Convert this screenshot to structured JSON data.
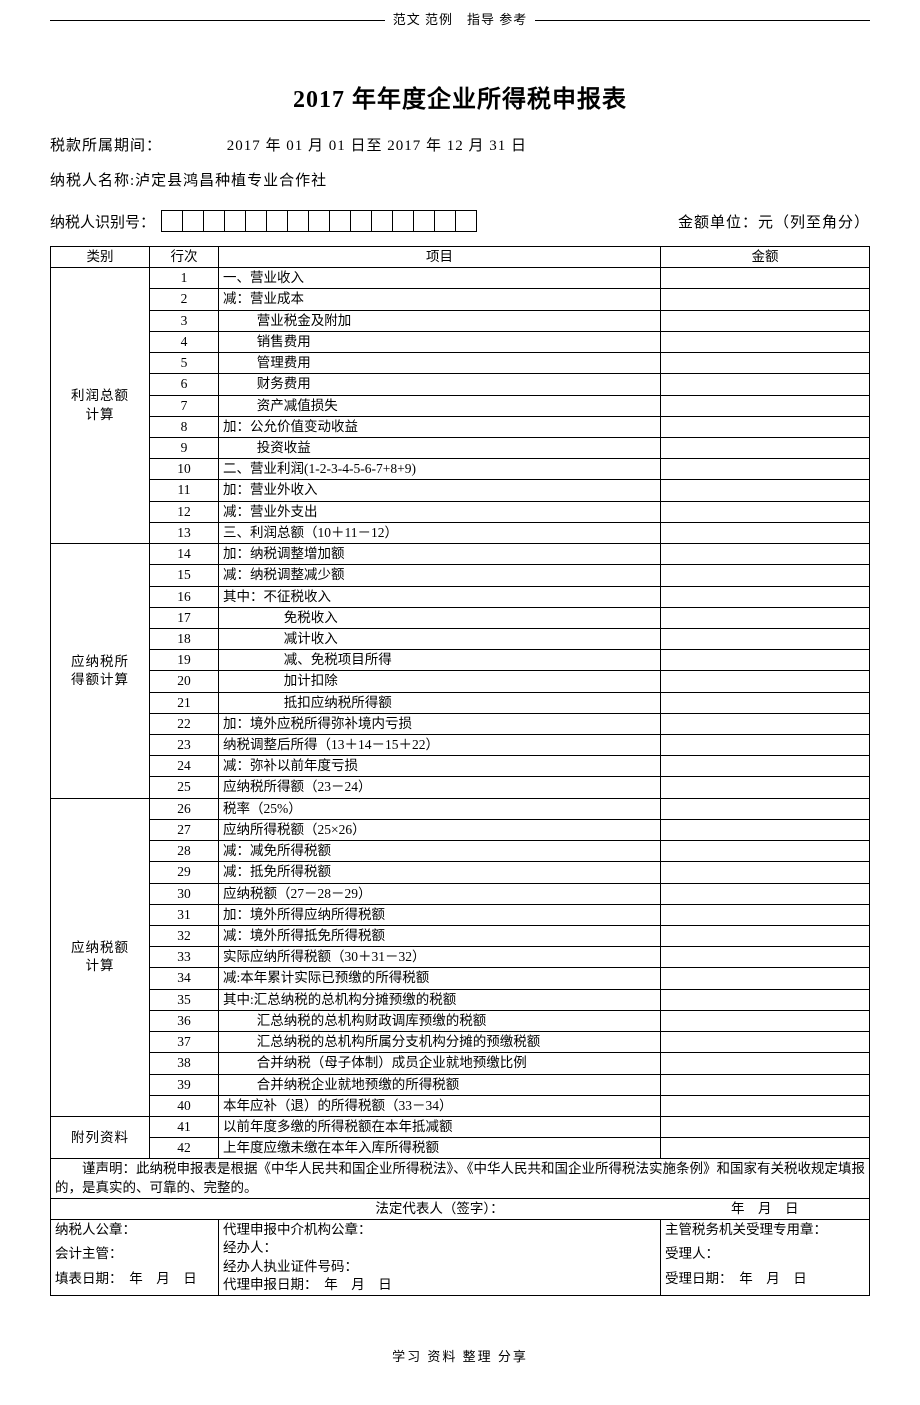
{
  "header_note": "范文 范例　指导 参考",
  "title": "2017 年年度企业所得税申报表",
  "period_label": "税款所属期间：",
  "period_value": "2017 年 01 月 01 日至 2017 年 12 月 31 日",
  "taxpayer_name_label": "纳税人名称:",
  "taxpayer_name_value": "泸定县鸿昌种植专业合作社",
  "taxpayer_id_label": "纳税人识别号：",
  "taxpayer_id_box_count": 15,
  "amount_unit": "金额单位：元（列至角分）",
  "columns": {
    "category": "类别",
    "rownum": "行次",
    "item": "项目",
    "amount": "金额"
  },
  "sections": [
    {
      "category": "利润总额\n计算",
      "rows": [
        {
          "n": "1",
          "item": "一、营业收入",
          "indent": 0
        },
        {
          "n": "2",
          "item": "减：营业成本",
          "indent": 0
        },
        {
          "n": "3",
          "item": "营业税金及附加",
          "indent": 1
        },
        {
          "n": "4",
          "item": "销售费用",
          "indent": 1
        },
        {
          "n": "5",
          "item": "管理费用",
          "indent": 1
        },
        {
          "n": "6",
          "item": "财务费用",
          "indent": 1
        },
        {
          "n": "7",
          "item": "资产减值损失",
          "indent": 1
        },
        {
          "n": "8",
          "item": "加：公允价值变动收益",
          "indent": 0
        },
        {
          "n": "9",
          "item": "投资收益",
          "indent": 1
        },
        {
          "n": "10",
          "item": "二、营业利润(1-2-3-4-5-6-7+8+9)",
          "indent": 0
        },
        {
          "n": "11",
          "item": "加：营业外收入",
          "indent": 0
        },
        {
          "n": "12",
          "item": "减：营业外支出",
          "indent": 0
        },
        {
          "n": "13",
          "item": "三、利润总额（10＋11－12）",
          "indent": 0
        }
      ]
    },
    {
      "category": "应纳税所\n得额计算",
      "rows": [
        {
          "n": "14",
          "item": "加：纳税调整增加额",
          "indent": 0
        },
        {
          "n": "15",
          "item": "减：纳税调整减少额",
          "indent": 0
        },
        {
          "n": "16",
          "item": "其中：不征税收入",
          "indent": 0
        },
        {
          "n": "17",
          "item": "免税收入",
          "indent": 2
        },
        {
          "n": "18",
          "item": "减计收入",
          "indent": 2
        },
        {
          "n": "19",
          "item": "减、免税项目所得",
          "indent": 2
        },
        {
          "n": "20",
          "item": "加计扣除",
          "indent": 2
        },
        {
          "n": "21",
          "item": "抵扣应纳税所得额",
          "indent": 2
        },
        {
          "n": "22",
          "item": "加：境外应税所得弥补境内亏损",
          "indent": 0
        },
        {
          "n": "23",
          "item": "纳税调整后所得（13＋14－15＋22）",
          "indent": 0
        },
        {
          "n": "24",
          "item": "减：弥补以前年度亏损",
          "indent": 0
        },
        {
          "n": "25",
          "item": "应纳税所得额（23－24）",
          "indent": 0
        }
      ]
    },
    {
      "category": "应纳税额\n计算",
      "rows": [
        {
          "n": "26",
          "item": "税率（25%）",
          "indent": 0
        },
        {
          "n": "27",
          "item": "应纳所得税额（25×26）",
          "indent": 0
        },
        {
          "n": "28",
          "item": "减：减免所得税额",
          "indent": 0
        },
        {
          "n": "29",
          "item": "减：抵免所得税额",
          "indent": 0
        },
        {
          "n": "30",
          "item": "应纳税额（27－28－29）",
          "indent": 0
        },
        {
          "n": "31",
          "item": "加：境外所得应纳所得税额",
          "indent": 0
        },
        {
          "n": "32",
          "item": "减：境外所得抵免所得税额",
          "indent": 0
        },
        {
          "n": "33",
          "item": "实际应纳所得税额（30＋31－32）",
          "indent": 0
        },
        {
          "n": "34",
          "item": "减:本年累计实际已预缴的所得税额",
          "indent": 0
        },
        {
          "n": "35",
          "item": "其中:汇总纳税的总机构分摊预缴的税额",
          "indent": 0
        },
        {
          "n": "36",
          "item": "汇总纳税的总机构财政调库预缴的税额",
          "indent": 1
        },
        {
          "n": "37",
          "item": "汇总纳税的总机构所属分支机构分摊的预缴税额",
          "indent": 1
        },
        {
          "n": "38",
          "item": "合并纳税（母子体制）成员企业就地预缴比例",
          "indent": 1
        },
        {
          "n": "39",
          "item": "合并纳税企业就地预缴的所得税额",
          "indent": 1
        },
        {
          "n": "40",
          "item": "本年应补（退）的所得税额（33－34）",
          "indent": 0
        }
      ]
    },
    {
      "category": "附列资料",
      "rows": [
        {
          "n": "41",
          "item": "以前年度多缴的所得税额在本年抵减额",
          "indent": 0
        },
        {
          "n": "42",
          "item": "上年度应缴未缴在本年入库所得税额",
          "indent": 0
        }
      ]
    }
  ],
  "declaration": "　　谨声明：此纳税申报表是根据《中华人民共和国企业所得税法》、《中华人民共和国企业所得税法实施条例》和国家有关税收规定填报的，是真实的、可靠的、完整的。",
  "legal_rep_label": "法定代表人（签字）：",
  "date_placeholder": "年　月　日",
  "stamps": {
    "taxpayer_seal": "纳税人公章：",
    "accountant": "会计主管：",
    "fill_date": "填表日期：",
    "agent_seal": "代理申报中介机构公章：",
    "handler": "经办人：",
    "handler_cert": "经办人执业证件号码：",
    "agent_date": "代理申报日期：",
    "tax_office_seal": "主管税务机关受理专用章：",
    "receiver": "受理人：",
    "receive_date": "受理日期："
  },
  "footer_note": "学习 资料 整理 分享"
}
